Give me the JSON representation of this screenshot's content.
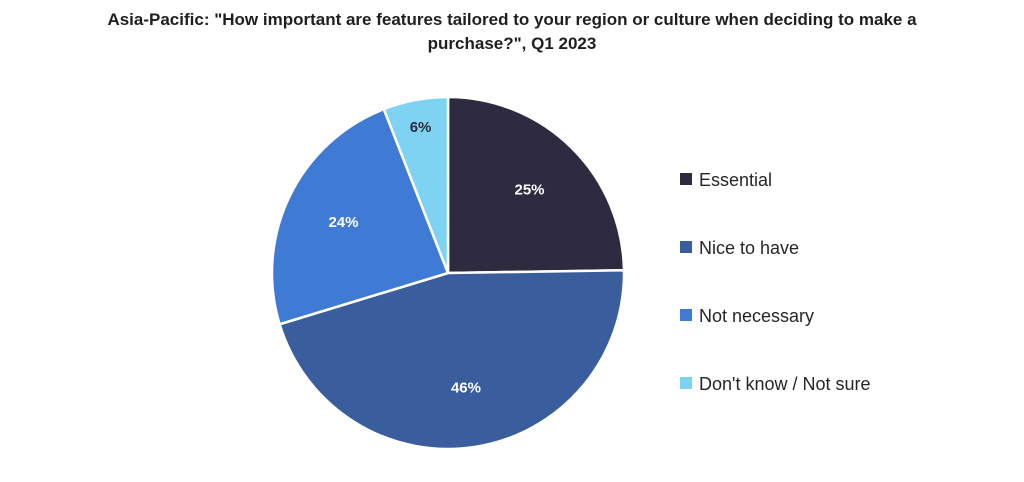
{
  "chart_data": {
    "type": "pie",
    "title": "Asia-Pacific: \"How important are features tailored to your region or culture when deciding to make a purchase?\", Q1 2023",
    "categories": [
      "Essential",
      "Nice to have",
      "Not necessary",
      "Don't know / Not sure"
    ],
    "values": [
      25,
      46,
      24,
      6
    ],
    "value_labels": [
      "25%",
      "46%",
      "24%",
      "6%"
    ],
    "unit": "%",
    "colors": [
      "#2e2a3f",
      "#3a5d9e",
      "#3f7bd4",
      "#7fd3f2"
    ],
    "label_colors": [
      "#ffffff",
      "#ffffff",
      "#ffffff",
      "#2e2a3f"
    ],
    "legend_position": "right",
    "start_angle_deg": 0,
    "direction": "clockwise"
  }
}
